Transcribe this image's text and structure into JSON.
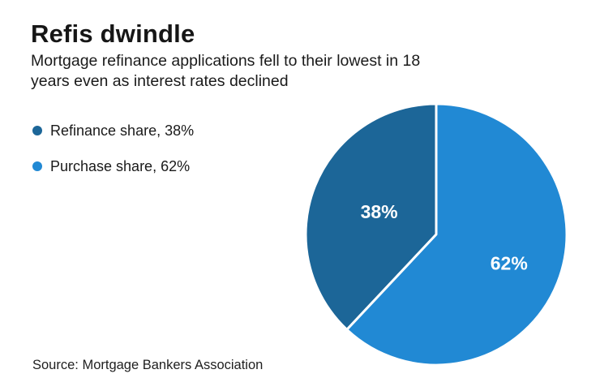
{
  "chart_data": {
    "type": "pie",
    "title": "Refis dwindle",
    "subtitle": "Mortgage refinance applications fell to their lowest in 18 years even as interest rates declined",
    "subtitle_lines": [
      "Mortgage refinance applications fell to their lowest in 18",
      "years even as interest rates declined"
    ],
    "source": "Source: Mortgage Bankers Association",
    "start_angle": "top",
    "direction": "counterclockwise",
    "legend_position": "left",
    "background_color": "#ffffff",
    "slices": [
      {
        "name": "refinance",
        "label": "Refinance share",
        "value_pct": 38,
        "value_label": "38%",
        "legend_label": "Refinance share, 38%",
        "color": "#1C6698",
        "text_color": "#FFFFFF"
      },
      {
        "name": "purchase",
        "label": "Purchase share",
        "value_pct": 62,
        "value_label": "62%",
        "legend_label": "Purchase share, 62%",
        "color": "#2189D4",
        "text_color": "#FFFFFF"
      }
    ]
  }
}
